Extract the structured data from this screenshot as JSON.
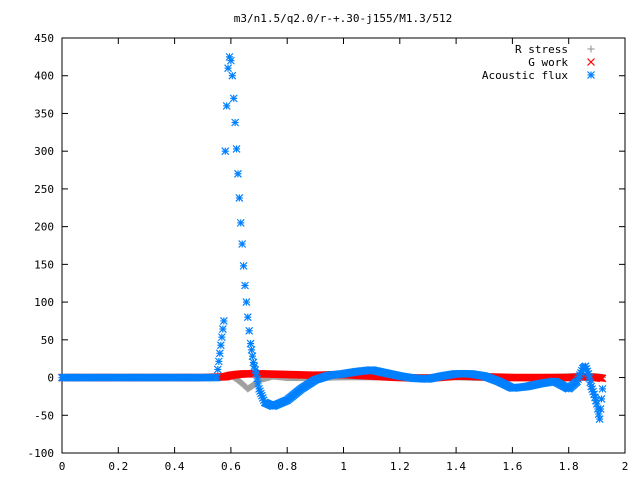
{
  "chart_data": {
    "type": "scatter",
    "title": "m3/n1.5/q2.0/r-+.30-j155/M1.3/512",
    "xlim": [
      0,
      2
    ],
    "ylim": [
      -100,
      450
    ],
    "xticks": [
      "0",
      "0.2",
      "0.4",
      "0.6",
      "0.8",
      "1",
      "1.2",
      "1.4",
      "1.6",
      "1.8",
      "2"
    ],
    "xtick_values": [
      0,
      0.2,
      0.4,
      0.6,
      0.8,
      1.0,
      1.2,
      1.4,
      1.6,
      1.8,
      2.0
    ],
    "yticks": [
      "-100",
      "-50",
      "0",
      "50",
      "100",
      "150",
      "200",
      "250",
      "300",
      "350",
      "400",
      "450"
    ],
    "ytick_values": [
      -100,
      -50,
      0,
      50,
      100,
      150,
      200,
      250,
      300,
      350,
      400,
      450
    ],
    "legend_position": "top-right",
    "colors": {
      "r_stress": "#a0a0a0",
      "g_work": "#ff0000",
      "acoustic_flux": "#0080ff"
    },
    "series": [
      {
        "name": "R stress",
        "marker": "plus",
        "x": [
          0.0,
          0.1,
          0.2,
          0.3,
          0.4,
          0.5,
          0.56,
          0.58,
          0.6,
          0.62,
          0.64,
          0.66,
          0.68,
          0.7,
          0.75,
          0.8,
          0.9,
          1.0,
          1.1,
          1.2,
          1.3,
          1.4,
          1.5,
          1.6,
          1.7,
          1.8,
          1.85,
          1.9,
          1.92
        ],
        "y": [
          0,
          0,
          0,
          0,
          0,
          0,
          0,
          2,
          3,
          -2,
          -8,
          -15,
          -10,
          -3,
          2,
          0,
          0,
          1,
          1,
          0,
          0,
          1,
          0,
          0,
          0,
          1,
          2,
          1,
          0
        ]
      },
      {
        "name": "G work",
        "marker": "cross",
        "x": [
          0.0,
          0.1,
          0.2,
          0.3,
          0.4,
          0.5,
          0.58,
          0.6,
          0.62,
          0.65,
          0.7,
          0.8,
          0.9,
          1.0,
          1.1,
          1.2,
          1.3,
          1.4,
          1.5,
          1.6,
          1.7,
          1.8,
          1.85,
          1.9,
          1.92
        ],
        "y": [
          0,
          0,
          0,
          0,
          0,
          0,
          1,
          3,
          4,
          5,
          5,
          4,
          3,
          4,
          2,
          0,
          -1,
          2,
          1,
          0,
          0,
          0,
          1,
          0,
          -1
        ]
      },
      {
        "name": "Acoustic flux",
        "marker": "star",
        "x": [
          0.0,
          0.05,
          0.1,
          0.15,
          0.2,
          0.25,
          0.3,
          0.35,
          0.4,
          0.45,
          0.5,
          0.55,
          0.575,
          0.58,
          0.585,
          0.59,
          0.595,
          0.6,
          0.605,
          0.61,
          0.615,
          0.62,
          0.625,
          0.63,
          0.635,
          0.64,
          0.645,
          0.65,
          0.655,
          0.66,
          0.665,
          0.67,
          0.68,
          0.69,
          0.7,
          0.72,
          0.75,
          0.8,
          0.85,
          0.9,
          0.95,
          1.0,
          1.05,
          1.1,
          1.15,
          1.2,
          1.25,
          1.3,
          1.35,
          1.4,
          1.45,
          1.5,
          1.55,
          1.6,
          1.65,
          1.7,
          1.75,
          1.8,
          1.83,
          1.85,
          1.86,
          1.87,
          1.88,
          1.89,
          1.9,
          1.91,
          1.92
        ],
        "y": [
          0,
          0,
          0,
          0,
          0,
          0,
          0,
          0,
          0,
          0,
          0,
          0,
          75,
          300,
          360,
          410,
          425,
          420,
          400,
          370,
          338,
          303,
          270,
          238,
          205,
          177,
          148,
          122,
          100,
          80,
          62,
          45,
          20,
          5,
          -15,
          -33,
          -38,
          -30,
          -15,
          -3,
          3,
          5,
          8,
          10,
          6,
          2,
          -1,
          -2,
          2,
          5,
          5,
          2,
          -5,
          -14,
          -12,
          -8,
          -5,
          -15,
          -5,
          12,
          15,
          5,
          -12,
          -22,
          -35,
          -55,
          -15
        ]
      }
    ]
  }
}
